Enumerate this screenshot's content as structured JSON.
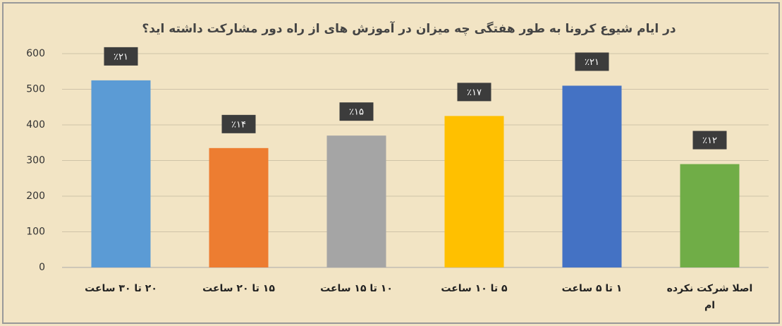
{
  "chart_data": {
    "type": "bar",
    "title": "در ایام شیوع کرونا به طور هفتگی چه میزان در آموزش های از راه دور مشارکت داشته اید؟",
    "categories": [
      "۲۰ تا ۳۰ ساعت",
      "۱۵ تا ۲۰ ساعت",
      "۱۰ تا ۱۵ ساعت",
      "۵ تا ۱۰ ساعت",
      "۱ تا ۵ ساعت",
      "اصلا شرکت نکرده ام"
    ],
    "values": [
      525,
      335,
      370,
      425,
      510,
      290
    ],
    "percent_labels": [
      "٪۲۱",
      "٪۱۴",
      "٪۱۵",
      "٪۱۷",
      "٪۲۱",
      "٪۱۲"
    ],
    "colors": [
      "#5b9bd5",
      "#ed7d31",
      "#a5a5a5",
      "#ffc000",
      "#4472c4",
      "#70ad47"
    ],
    "ylim": [
      0,
      600
    ],
    "yticks": [
      0,
      100,
      200,
      300,
      400,
      500,
      600
    ],
    "grid": true
  }
}
